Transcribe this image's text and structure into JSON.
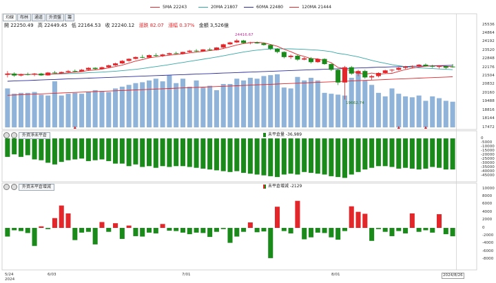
{
  "tabs": [
    "均線",
    "布林",
    "通道",
    "外資盤",
    "籌"
  ],
  "ma_legend": [
    {
      "label": "5MA 22243",
      "color": "#e2262a"
    },
    {
      "label": "20MA 21807",
      "color": "#35a6a6"
    },
    {
      "label": "60MA 22480",
      "color": "#2a2a9a"
    },
    {
      "label": "120MA 21444",
      "color": "#e2262a"
    }
  ],
  "ohlc": {
    "open": "開 22250.49",
    "high": "高 22449.45",
    "low": "低 22164.53",
    "close": "收 22240.12",
    "change": "漲跌 82.07",
    "pct": "漲幅  0.37%",
    "amount": "金額 3,526億"
  },
  "panel2": {
    "box": "外資淨未平倉",
    "value": "未平倉量 -36,989"
  },
  "panel3": {
    "box": "外資未平倉增減",
    "value": "未平倉增減 -2129"
  },
  "chart_data": [
    {
      "type": "candlestick",
      "annotations": {
        "high": "24416.67",
        "low": "19662.74"
      },
      "price_ticks": [
        "25536",
        "24864",
        "24192",
        "23520",
        "22848",
        "22176",
        "21504",
        "20832",
        "20160",
        "19488",
        "18816",
        "18144",
        "17472"
      ],
      "ylim": [
        17472,
        25536
      ],
      "ohlc": [
        [
          21600,
          21900,
          21400,
          21700
        ],
        [
          21700,
          21800,
          21450,
          21550
        ],
        [
          21550,
          21700,
          21480,
          21650
        ],
        [
          21650,
          21780,
          21560,
          21620
        ],
        [
          21620,
          21750,
          21500,
          21700
        ],
        [
          21700,
          21760,
          21520,
          21560
        ],
        [
          21560,
          21820,
          21540,
          21780
        ],
        [
          21780,
          21900,
          21700,
          21720
        ],
        [
          21720,
          21860,
          21680,
          21820
        ],
        [
          21820,
          21980,
          21760,
          21900
        ],
        [
          21900,
          22020,
          21800,
          21850
        ],
        [
          21850,
          22060,
          21830,
          22000
        ],
        [
          22000,
          22200,
          21940,
          22150
        ],
        [
          22150,
          22200,
          22000,
          22060
        ],
        [
          22060,
          22250,
          22020,
          22200
        ],
        [
          22200,
          22400,
          22150,
          22350
        ],
        [
          22350,
          22560,
          22300,
          22500
        ],
        [
          22500,
          22760,
          22460,
          22700
        ],
        [
          22700,
          22900,
          22640,
          22860
        ],
        [
          22860,
          23050,
          22800,
          23000
        ],
        [
          23000,
          23180,
          22900,
          22960
        ],
        [
          22960,
          23200,
          22920,
          23150
        ],
        [
          23150,
          23300,
          23050,
          23100
        ],
        [
          23100,
          23260,
          23000,
          23200
        ],
        [
          23200,
          23350,
          23150,
          23300
        ],
        [
          23300,
          23420,
          23220,
          23250
        ],
        [
          23250,
          23420,
          23200,
          23400
        ],
        [
          23400,
          23560,
          23350,
          23500
        ],
        [
          23500,
          23620,
          23400,
          23450
        ],
        [
          23450,
          23620,
          23420,
          23600
        ],
        [
          23600,
          23720,
          23500,
          23550
        ],
        [
          23550,
          23780,
          23520,
          23750
        ],
        [
          23750,
          24050,
          23700,
          24000
        ],
        [
          24000,
          24200,
          23950,
          24150
        ],
        [
          24150,
          24416.67,
          24100,
          24300
        ],
        [
          24300,
          24350,
          24050,
          24100
        ],
        [
          24100,
          24200,
          24000,
          24150
        ],
        [
          24150,
          24220,
          24050,
          24080
        ],
        [
          24080,
          24150,
          23900,
          23950
        ],
        [
          23950,
          24000,
          23550,
          23650
        ],
        [
          23650,
          23700,
          23300,
          23400
        ],
        [
          23400,
          23450,
          22900,
          23000
        ],
        [
          23000,
          23200,
          22850,
          23100
        ],
        [
          23100,
          23200,
          22700,
          22800
        ],
        [
          22800,
          23000,
          22750,
          22900
        ],
        [
          22900,
          23000,
          22500,
          22600
        ],
        [
          22600,
          22900,
          22550,
          22850
        ],
        [
          22850,
          22900,
          22400,
          22450
        ],
        [
          22450,
          22500,
          21900,
          22000
        ],
        [
          22000,
          22100,
          20800,
          21000
        ],
        [
          21000,
          22300,
          19662.74,
          22200
        ],
        [
          22200,
          22300,
          21600,
          21700
        ],
        [
          21700,
          22000,
          21500,
          21900
        ],
        [
          21900,
          22000,
          21300,
          21400
        ],
        [
          21400,
          21600,
          21200,
          21500
        ],
        [
          21500,
          21800,
          21400,
          21750
        ],
        [
          21750,
          22000,
          21700,
          21950
        ],
        [
          21950,
          22050,
          21800,
          22000
        ],
        [
          22000,
          22200,
          21950,
          22150
        ],
        [
          22150,
          22300,
          22050,
          22250
        ],
        [
          22250,
          22350,
          22100,
          22300
        ],
        [
          22300,
          22450,
          22200,
          22400
        ],
        [
          22400,
          22500,
          22250,
          22300
        ],
        [
          22300,
          22400,
          22150,
          22250
        ],
        [
          22250,
          22350,
          22100,
          22280
        ],
        [
          22280,
          22300,
          22050,
          22160
        ],
        [
          22250.49,
          22449.45,
          22164.53,
          22240.12
        ]
      ],
      "volume": [
        4.4,
        3.8,
        3.9,
        3.9,
        4.0,
        3.7,
        3.6,
        5.2,
        3.6,
        3.8,
        3.9,
        3.8,
        4.0,
        4.2,
        4.1,
        4.0,
        4.4,
        4.6,
        4.8,
        5.0,
        5.1,
        5.3,
        5.5,
        5.2,
        5.9,
        5.0,
        5.5,
        4.6,
        5.3,
        4.5,
        4.7,
        4.2,
        4.9,
        4.9,
        5.5,
        5.3,
        5.6,
        5.5,
        5.8,
        5.9,
        6.0,
        4.5,
        4.4,
        5.7,
        5.3,
        5.6,
        5.3,
        3.9,
        3.8,
        3.7,
        3.6,
        5.6,
        6.3,
        5.3,
        4.8,
        3.9,
        3.5,
        4.4,
        3.8,
        3.5,
        3.4,
        3.6,
        3.0,
        3.5,
        3.3,
        3.0,
        2.9
      ]
    },
    {
      "type": "bar",
      "title": "外資淨未平倉",
      "yticks": [
        "0",
        "-5000",
        "-10000",
        "-15000",
        "-20000",
        "-25000",
        "-30000",
        "-35000",
        "-40000",
        "-45000"
      ],
      "ylim": [
        -50000,
        0
      ],
      "values": [
        -22000,
        -19000,
        -22000,
        -20000,
        -25000,
        -26000,
        -29000,
        -31000,
        -28000,
        -26000,
        -25000,
        -24000,
        -27000,
        -26000,
        -25000,
        -27000,
        -30000,
        -30000,
        -33000,
        -31000,
        -34000,
        -33000,
        -35000,
        -33000,
        -34000,
        -33000,
        -33000,
        -34000,
        -35000,
        -36000,
        -37000,
        -38000,
        -39000,
        -40000,
        -39000,
        -41000,
        -42000,
        -43000,
        -44000,
        -45000,
        -46000,
        -43000,
        -42000,
        -43000,
        -40000,
        -41000,
        -42000,
        -43000,
        -45000,
        -46000,
        -47000,
        -43000,
        -40000,
        -37000,
        -35000,
        -33000,
        -33000,
        -34000,
        -36000,
        -35000,
        -36000,
        -37000,
        -36000,
        -34000,
        -35000,
        -37000,
        -36989
      ]
    },
    {
      "type": "bar",
      "title": "外資未平倉增減",
      "yticks": [
        "10000",
        "8000",
        "6000",
        "4000",
        "2000",
        "0",
        "-2000",
        "-4000",
        "-6000",
        "-8000"
      ],
      "ylim": [
        -10000,
        10000
      ],
      "values": [
        -2200,
        -600,
        -800,
        -1300,
        -4600,
        400,
        -300,
        2500,
        5700,
        3700,
        -3100,
        -1200,
        -1000,
        -4200,
        1500,
        -1000,
        1200,
        -2800,
        600,
        -2100,
        -2200,
        -1200,
        -1400,
        1000,
        -700,
        -800,
        -1200,
        -1600,
        -1200,
        -1300,
        -2300,
        -1000,
        -300,
        -3800,
        -2200,
        -1000,
        1400,
        -1100,
        -900,
        -7700,
        5400,
        -800,
        -1400,
        6900,
        -2900,
        -2400,
        -1200,
        -1300,
        -2400,
        -3000,
        -800,
        5500,
        4100,
        3600,
        -3300,
        -300,
        -1000,
        -2100,
        -800,
        -1400,
        3700,
        -1000,
        -600,
        -1200,
        3500,
        -1600,
        -2129
      ]
    }
  ],
  "x_labels": [
    "5/24\n2024",
    "6/03",
    "7/01",
    "8/01",
    "2024/8/26"
  ]
}
